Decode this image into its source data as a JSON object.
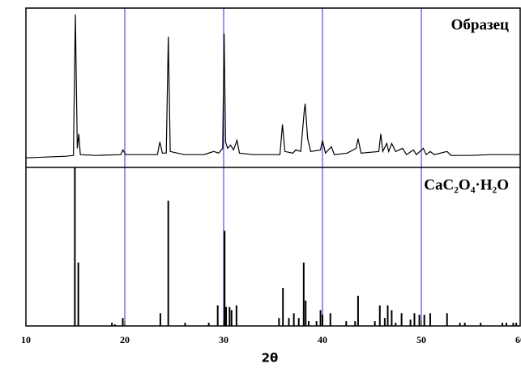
{
  "chart_data": [
    {
      "type": "line",
      "series": [
        {
          "name": "Образец",
          "color": "#000000"
        }
      ],
      "x": [
        10,
        12,
        14,
        14.8,
        15.0,
        15.2,
        15.35,
        15.5,
        17,
        19.6,
        19.8,
        20.1,
        23.3,
        23.55,
        23.8,
        24.2,
        24.4,
        24.6,
        26,
        28,
        29.0,
        29.5,
        29.9,
        30.05,
        30.2,
        30.4,
        30.7,
        31.0,
        31.35,
        31.6,
        33,
        35.7,
        35.95,
        36.2,
        37.0,
        37.3,
        37.8,
        38.15,
        38.25,
        38.5,
        38.8,
        39.8,
        40.0,
        40.3,
        40.9,
        41.2,
        42.5,
        43.4,
        43.6,
        43.9,
        45.7,
        45.9,
        46.1,
        46.5,
        46.7,
        47.0,
        47.4,
        48.1,
        48.5,
        49.2,
        49.5,
        50.2,
        50.5,
        50.9,
        51.3,
        52.6,
        53,
        55,
        57,
        60
      ],
      "values": [
        6,
        6.5,
        7,
        7.5,
        96,
        12,
        21,
        8,
        7.5,
        8,
        11,
        8,
        8,
        16,
        9,
        9,
        82,
        10,
        8,
        8,
        10,
        9,
        12,
        84,
        16,
        12,
        14,
        11,
        17,
        9,
        8,
        8,
        27,
        10,
        9,
        11,
        10,
        35,
        40,
        18,
        10,
        11,
        17,
        9,
        13,
        8,
        9,
        12,
        18,
        9,
        10,
        21,
        10,
        15,
        10,
        15,
        10,
        12,
        8,
        11,
        8,
        12,
        8,
        10,
        8,
        10,
        7.5,
        7.5,
        8,
        8
      ],
      "xlim": [
        10,
        60
      ],
      "ylim": [
        0,
        100
      ]
    },
    {
      "type": "stem",
      "series": [
        {
          "name": "CaC₂O₄·H₂O",
          "color": "#000000"
        }
      ],
      "x": [
        14.95,
        15.3,
        18.7,
        19.0,
        19.8,
        23.6,
        24.4,
        26.1,
        28.5,
        29.4,
        30.1,
        30.25,
        30.6,
        30.8,
        31.3,
        35.6,
        36.0,
        36.6,
        37.1,
        37.6,
        38.1,
        38.3,
        38.6,
        39.4,
        39.8,
        40.0,
        40.8,
        42.4,
        43.3,
        43.6,
        45.3,
        45.8,
        46.3,
        46.6,
        47.0,
        47.4,
        48.0,
        48.9,
        49.3,
        49.8,
        50.3,
        50.9,
        52.6,
        53.9,
        54.4,
        56.0,
        58.2,
        58.6,
        59.3,
        59.6
      ],
      "values": [
        100,
        40,
        2,
        1,
        5,
        8,
        79,
        2,
        2,
        13,
        60,
        12,
        12,
        10,
        13,
        5,
        24,
        5,
        8,
        5,
        40,
        16,
        3,
        3,
        10,
        7,
        8,
        3,
        3,
        19,
        3,
        13,
        5,
        13,
        10,
        2,
        8,
        4,
        8,
        7,
        7,
        8,
        8,
        2,
        2,
        2,
        2,
        2,
        2,
        2
      ],
      "xlim": [
        10,
        60
      ],
      "ylim": [
        0,
        100
      ],
      "xticks": [
        10,
        20,
        30,
        40,
        50,
        60
      ],
      "xlabel": "2θ",
      "grid": true,
      "grid_color": "#2b2bd6"
    }
  ]
}
